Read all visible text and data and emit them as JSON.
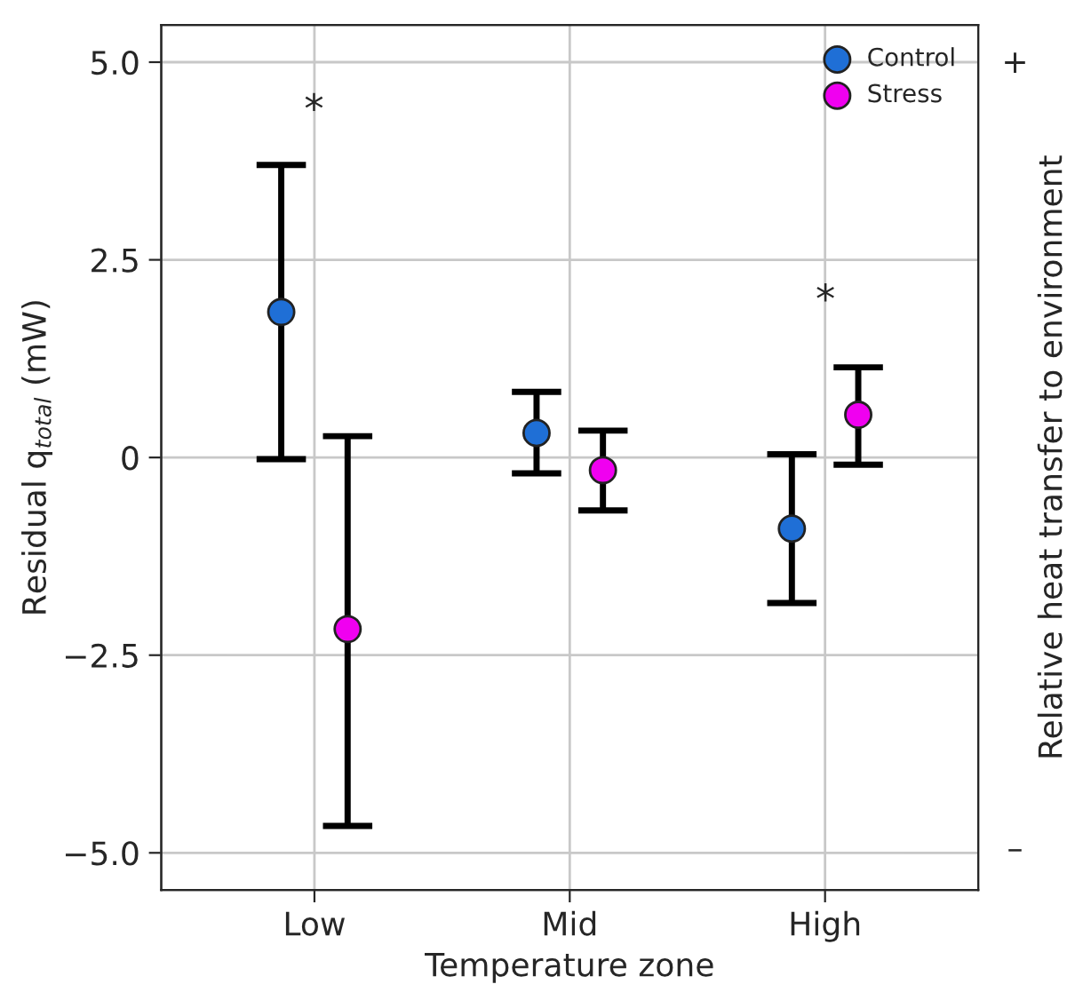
{
  "chart_data": {
    "type": "scatter",
    "xlabel": "Temperature zone",
    "ylabel": "Residual q$_{total}$ (mW)",
    "y2label": "Relative heat transfer to environment",
    "categories": [
      "Low",
      "Mid",
      "High"
    ],
    "series": [
      {
        "name": "Control",
        "color": "#1f6fd6",
        "values": [
          1.84,
          0.31,
          -0.9
        ],
        "errors": [
          [
            -0.02,
            3.7
          ],
          [
            -0.2,
            0.83
          ],
          [
            -1.84,
            0.04
          ]
        ]
      },
      {
        "name": "Stress",
        "color": "#f000f0",
        "values": [
          -2.17,
          -0.16,
          0.54
        ],
        "errors": [
          [
            -4.66,
            0.27
          ],
          [
            -0.67,
            0.34
          ],
          [
            -0.09,
            1.14
          ]
        ]
      }
    ],
    "ylim": [
      -5.47,
      5.47
    ],
    "yticks": [
      {
        "value": -5.0,
        "label": "−5.0"
      },
      {
        "value": -2.5,
        "label": "−2.5"
      },
      {
        "value": 0,
        "label": "0"
      },
      {
        "value": 2.5,
        "label": "2.5"
      },
      {
        "value": 5.0,
        "label": "5.0"
      }
    ],
    "annotations": [
      "*",
      "*",
      "+",
      "–"
    ],
    "grid": true,
    "legend": "top right",
    "marker": "circle"
  }
}
